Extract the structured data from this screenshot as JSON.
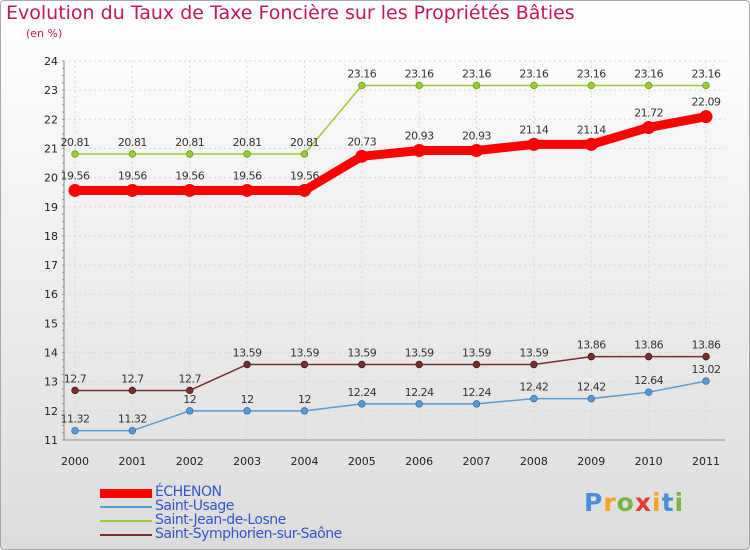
{
  "title": "Evolution du Taux de Taxe Foncière sur les Propriétés Bâties",
  "unit_label": "(en %)",
  "brand": "Proxiti",
  "colors": {
    "series_echenon": "#ff0000",
    "series_saint_usage": "#5b9bd5",
    "series_saint_jean": "#9acd32",
    "series_saint_symphorien": "#7b2e2e",
    "title": "#c2185b",
    "legend_text": "#3355cc"
  },
  "chart_data": {
    "type": "line",
    "title": "Evolution du Taux de Taxe Foncière sur les Propriétés Bâties",
    "ylabel": "(en %)",
    "xlabel": "",
    "categories": [
      "2000",
      "2001",
      "2002",
      "2003",
      "2004",
      "2005",
      "2006",
      "2007",
      "2008",
      "2009",
      "2010",
      "2011"
    ],
    "ylim": [
      11,
      24
    ],
    "yticks": [
      "11",
      "12",
      "13",
      "14",
      "15",
      "16",
      "17",
      "18",
      "19",
      "20",
      "21",
      "22",
      "23",
      "24"
    ],
    "series": [
      {
        "name": "ÉCHENON",
        "values": [
          19.56,
          19.56,
          19.56,
          19.56,
          19.56,
          20.73,
          20.93,
          20.93,
          21.14,
          21.14,
          21.72,
          22.09
        ],
        "labels": [
          "19.56",
          "19.56",
          "19.56",
          "19.56",
          "19.56",
          "20.73",
          "20.93",
          "20.93",
          "21.14",
          "21.14",
          "21.72",
          "22.09"
        ]
      },
      {
        "name": "Saint-Usage",
        "values": [
          11.32,
          11.32,
          12,
          12,
          12,
          12.24,
          12.24,
          12.24,
          12.42,
          12.42,
          12.64,
          13.02
        ],
        "labels": [
          "11.32",
          "11.32",
          "12",
          "12",
          "12",
          "12.24",
          "12.24",
          "12.24",
          "12.42",
          "12.42",
          "12.64",
          "13.02"
        ]
      },
      {
        "name": "Saint-Jean-de-Losne",
        "values": [
          20.81,
          20.81,
          20.81,
          20.81,
          20.81,
          23.16,
          23.16,
          23.16,
          23.16,
          23.16,
          23.16,
          23.16
        ],
        "labels": [
          "20.81",
          "20.81",
          "20.81",
          "20.81",
          "20.81",
          "23.16",
          "23.16",
          "23.16",
          "23.16",
          "23.16",
          "23.16",
          "23.16"
        ]
      },
      {
        "name": "Saint-Symphorien-sur-Saône",
        "values": [
          12.7,
          12.7,
          12.7,
          13.59,
          13.59,
          13.59,
          13.59,
          13.59,
          13.59,
          13.86,
          13.86,
          13.86
        ],
        "labels": [
          "12.7",
          "12.7",
          "12.7",
          "13.59",
          "13.59",
          "13.59",
          "13.59",
          "13.59",
          "13.59",
          "13.86",
          "13.86",
          "13.86"
        ]
      }
    ],
    "grid": true,
    "legend": "bottom-left"
  }
}
